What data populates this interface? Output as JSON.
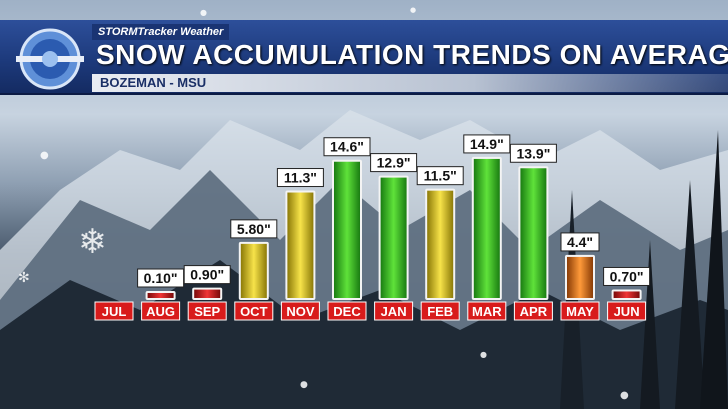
{
  "brand": "STORMTracker Weather",
  "title": "SNOW ACCUMULATION TRENDS ON AVERAGE",
  "subtitle": "BOZEMAN - MSU",
  "colors": {
    "low": "#d01818",
    "mid": "#e0c81a",
    "high": "#2fbf1a",
    "may": "#e8761a",
    "header": "#1d3a7c"
  },
  "chart_data": {
    "type": "bar",
    "title": "SNOW ACCUMULATION TRENDS ON AVERAGE",
    "subtitle": "BOZEMAN - MSU",
    "categories": [
      "JUL",
      "AUG",
      "SEP",
      "OCT",
      "NOV",
      "DEC",
      "JAN",
      "FEB",
      "MAR",
      "APR",
      "MAY",
      "JUN"
    ],
    "values": [
      0,
      0.1,
      0.9,
      5.8,
      11.3,
      14.6,
      12.9,
      11.5,
      14.9,
      13.9,
      4.4,
      0.7
    ],
    "labels": [
      "",
      "0.10\"",
      "0.90\"",
      "5.80\"",
      "11.3\"",
      "14.6\"",
      "12.9\"",
      "11.5\"",
      "14.9\"",
      "13.9\"",
      "4.4\"",
      "0.70\""
    ],
    "bar_colors": [
      "",
      "red",
      "red",
      "yellow",
      "yellow",
      "green",
      "green",
      "yellow",
      "green",
      "green",
      "orange",
      "red"
    ],
    "xlabel": "",
    "ylabel": "",
    "ylim": [
      0,
      15
    ]
  }
}
